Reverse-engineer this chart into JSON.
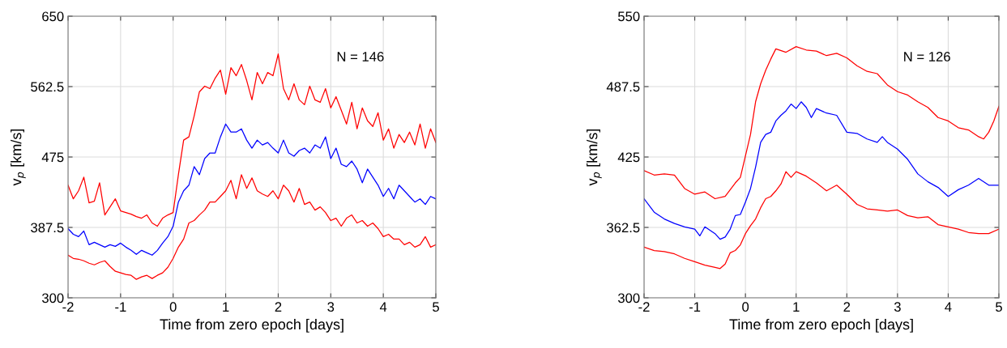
{
  "chart_data": [
    {
      "type": "line",
      "xlabel": "Time from zero epoch [days]",
      "ylabel": "v$_{p}$ [km/s]",
      "annotations": [
        "N = 146"
      ],
      "xlim": [
        -2,
        5
      ],
      "xticks": [
        -2,
        -1,
        0,
        1,
        2,
        3,
        4,
        5
      ],
      "ylim": [
        300,
        650
      ],
      "yticks": [
        300,
        387.5,
        475,
        562.5,
        650
      ],
      "grid": true,
      "line_style": "solid",
      "marker": "none",
      "x": [
        -2.0,
        -1.9,
        -1.8,
        -1.7,
        -1.6,
        -1.5,
        -1.4,
        -1.3,
        -1.2,
        -1.1,
        -1.0,
        -0.9,
        -0.8,
        -0.7,
        -0.6,
        -0.5,
        -0.4,
        -0.3,
        -0.2,
        -0.1,
        0.0,
        0.1,
        0.2,
        0.3,
        0.4,
        0.5,
        0.6,
        0.7,
        0.8,
        0.9,
        1.0,
        1.1,
        1.2,
        1.3,
        1.4,
        1.5,
        1.6,
        1.7,
        1.8,
        1.9,
        2.0,
        2.1,
        2.2,
        2.3,
        2.4,
        2.5,
        2.6,
        2.7,
        2.8,
        2.9,
        3.0,
        3.1,
        3.2,
        3.3,
        3.4,
        3.5,
        3.6,
        3.7,
        3.8,
        3.9,
        4.0,
        4.1,
        4.2,
        4.3,
        4.4,
        4.5,
        4.6,
        4.7,
        4.8,
        4.9,
        5.0
      ],
      "series": [
        {
          "color": "#ff0000",
          "values": [
            440,
            423,
            433,
            450,
            418,
            420,
            443,
            403,
            413,
            423,
            408,
            406,
            404,
            401,
            399,
            403,
            393,
            389,
            399,
            403,
            406,
            453,
            496,
            500,
            526,
            556,
            563,
            560,
            573,
            583,
            553,
            586,
            576,
            590,
            570,
            546,
            580,
            566,
            580,
            576,
            603,
            560,
            546,
            566,
            546,
            540,
            563,
            546,
            543,
            560,
            536,
            550,
            533,
            516,
            543,
            510,
            536,
            520,
            513,
            530,
            496,
            510,
            486,
            503,
            493,
            506,
            490,
            516,
            486,
            510,
            493
          ]
        },
        {
          "color": "#0000ff",
          "values": [
            386,
            379,
            376,
            383,
            366,
            369,
            366,
            363,
            366,
            364,
            368,
            363,
            359,
            354,
            359,
            356,
            353,
            359,
            368,
            376,
            389,
            419,
            433,
            440,
            463,
            453,
            473,
            480,
            480,
            500,
            516,
            506,
            506,
            510,
            496,
            486,
            496,
            490,
            493,
            486,
            480,
            496,
            480,
            476,
            483,
            486,
            480,
            490,
            486,
            500,
            473,
            486,
            466,
            463,
            470,
            460,
            443,
            460,
            450,
            440,
            426,
            436,
            423,
            440,
            433,
            426,
            419,
            423,
            416,
            426,
            423
          ]
        },
        {
          "color": "#ff0000",
          "values": [
            353,
            349,
            348,
            346,
            343,
            341,
            344,
            346,
            339,
            333,
            331,
            329,
            328,
            323,
            326,
            328,
            324,
            328,
            331,
            338,
            349,
            363,
            373,
            393,
            396,
            403,
            409,
            419,
            419,
            426,
            433,
            446,
            423,
            453,
            436,
            449,
            433,
            429,
            426,
            433,
            423,
            440,
            433,
            419,
            436,
            416,
            419,
            409,
            413,
            406,
            396,
            399,
            389,
            399,
            403,
            393,
            396,
            389,
            393,
            386,
            376,
            379,
            373,
            373,
            366,
            369,
            363,
            366,
            376,
            363,
            366
          ]
        }
      ]
    },
    {
      "type": "line",
      "xlabel": "Time from zero epoch [days]",
      "ylabel": "v$_{p}$ [km/s]",
      "annotations": [
        "N = 126"
      ],
      "xlim": [
        -2,
        5
      ],
      "xticks": [
        -2,
        -1,
        0,
        1,
        2,
        3,
        4,
        5
      ],
      "ylim": [
        300,
        550
      ],
      "yticks": [
        300,
        362.5,
        425,
        487.5,
        550
      ],
      "grid": true,
      "line_style": "solid",
      "marker": "none",
      "series": [
        {
          "color": "#ff0000",
          "x": [
            -2.0,
            -1.8,
            -1.6,
            -1.4,
            -1.2,
            -1.0,
            -0.8,
            -0.6,
            -0.4,
            -0.2,
            -0.1,
            0.0,
            0.1,
            0.2,
            0.3,
            0.4,
            0.5,
            0.6,
            0.8,
            1.0,
            1.2,
            1.4,
            1.6,
            1.8,
            2.0,
            2.2,
            2.4,
            2.6,
            2.8,
            3.0,
            3.2,
            3.4,
            3.6,
            3.8,
            4.0,
            4.2,
            4.4,
            4.6,
            4.7,
            4.8,
            4.9,
            5.0
          ],
          "values": [
            413,
            409,
            410,
            409,
            397,
            392,
            394,
            388,
            390,
            402,
            407,
            426,
            445,
            474,
            490,
            502,
            512,
            521,
            518,
            523,
            520,
            519,
            515,
            517,
            513,
            506,
            501,
            499,
            489,
            483,
            480,
            474,
            469,
            460,
            457,
            451,
            449,
            443,
            441,
            447,
            457,
            470
          ]
        },
        {
          "color": "#0000ff",
          "x": [
            -2.0,
            -1.8,
            -1.6,
            -1.4,
            -1.2,
            -1.0,
            -0.9,
            -0.8,
            -0.6,
            -0.5,
            -0.4,
            -0.3,
            -0.2,
            -0.1,
            0.0,
            0.1,
            0.2,
            0.3,
            0.4,
            0.5,
            0.6,
            0.7,
            0.8,
            0.9,
            1.0,
            1.1,
            1.2,
            1.3,
            1.4,
            1.6,
            1.8,
            2.0,
            2.2,
            2.4,
            2.6,
            2.7,
            2.8,
            3.0,
            3.2,
            3.4,
            3.6,
            3.8,
            4.0,
            4.2,
            4.4,
            4.6,
            4.8,
            5.0
          ],
          "values": [
            388,
            376,
            370,
            366,
            363,
            361,
            355,
            363,
            357,
            352,
            354,
            361,
            373,
            374,
            385,
            397,
            416,
            438,
            445,
            447,
            457,
            462,
            466,
            472,
            468,
            474,
            469,
            460,
            468,
            464,
            462,
            447,
            446,
            441,
            438,
            443,
            438,
            432,
            423,
            410,
            403,
            398,
            390,
            396,
            400,
            406,
            400,
            400
          ]
        },
        {
          "color": "#ff0000",
          "x": [
            -2.0,
            -1.8,
            -1.6,
            -1.4,
            -1.2,
            -1.0,
            -0.8,
            -0.6,
            -0.5,
            -0.4,
            -0.3,
            -0.2,
            -0.1,
            0.0,
            0.1,
            0.2,
            0.3,
            0.4,
            0.5,
            0.6,
            0.7,
            0.8,
            0.9,
            1.0,
            1.2,
            1.4,
            1.6,
            1.8,
            2.0,
            2.2,
            2.4,
            2.6,
            2.8,
            3.0,
            3.2,
            3.4,
            3.6,
            3.8,
            4.0,
            4.2,
            4.4,
            4.6,
            4.8,
            5.0
          ],
          "values": [
            345,
            342,
            341,
            339,
            335,
            332,
            329,
            327,
            326,
            330,
            340,
            342,
            347,
            357,
            364,
            370,
            380,
            388,
            390,
            395,
            401,
            412,
            407,
            412,
            408,
            402,
            395,
            400,
            392,
            383,
            379,
            378,
            377,
            378,
            373,
            371,
            372,
            365,
            363,
            361,
            358,
            357,
            357,
            361
          ]
        }
      ]
    }
  ]
}
